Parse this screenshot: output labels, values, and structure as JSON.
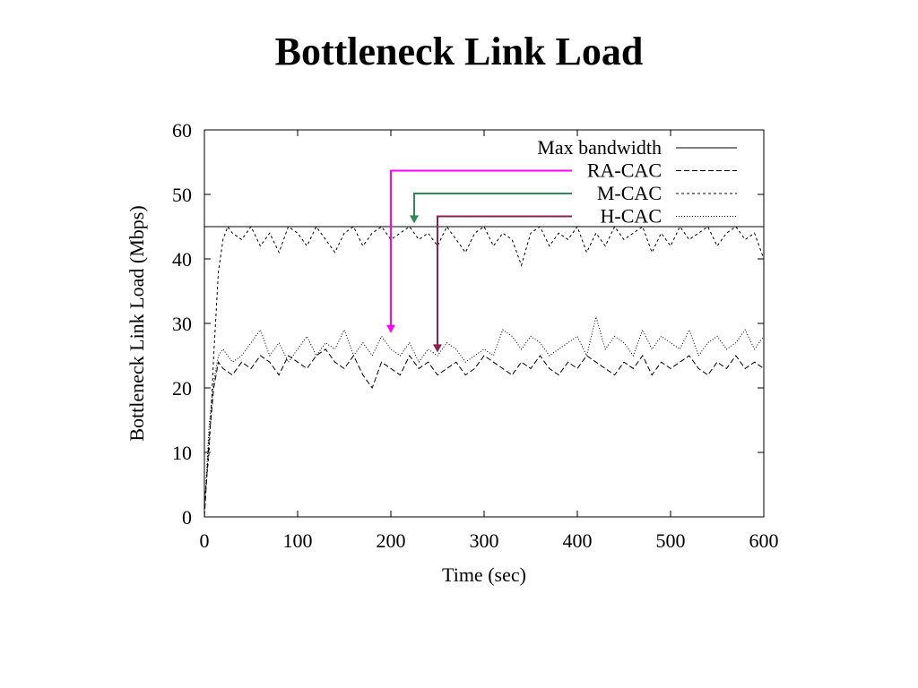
{
  "slide": {
    "title": "Bottleneck Link Load"
  },
  "chart_data": {
    "type": "line",
    "title": "",
    "xlabel": "Time (sec)",
    "ylabel": "Bottleneck Link Load (Mbps)",
    "xlim": [
      0,
      600
    ],
    "ylim": [
      0,
      60
    ],
    "x_ticks": [
      0,
      100,
      200,
      300,
      400,
      500,
      600
    ],
    "y_ticks": [
      0,
      10,
      20,
      30,
      40,
      50,
      60
    ],
    "grid": false,
    "legend_position": "top-right",
    "series": [
      {
        "name": "Max bandwidth",
        "dash": "",
        "x": [
          0,
          600
        ],
        "values": [
          45,
          45
        ]
      },
      {
        "name": "RA-CAC",
        "dash": "6,3",
        "x": [
          0,
          5,
          10,
          15,
          20,
          30,
          40,
          50,
          60,
          70,
          80,
          90,
          100,
          110,
          120,
          130,
          140,
          150,
          160,
          170,
          180,
          190,
          200,
          210,
          220,
          230,
          240,
          250,
          260,
          270,
          280,
          290,
          300,
          310,
          320,
          330,
          340,
          350,
          360,
          370,
          380,
          390,
          400,
          410,
          420,
          430,
          440,
          450,
          460,
          470,
          480,
          490,
          500,
          510,
          520,
          530,
          540,
          550,
          560,
          570,
          580,
          590,
          600
        ],
        "values": [
          0,
          12,
          20,
          24,
          23,
          22,
          24,
          23,
          25,
          24,
          22,
          25,
          24,
          23,
          25,
          26,
          24,
          23,
          25,
          22,
          20,
          24,
          23,
          22,
          25,
          23,
          24,
          22,
          23,
          24,
          22,
          23,
          25,
          24,
          23,
          22,
          24,
          23,
          25,
          23,
          22,
          24,
          23,
          25,
          24,
          23,
          22,
          24,
          23,
          25,
          22,
          24,
          23,
          24,
          25,
          23,
          22,
          24,
          23,
          25,
          23,
          24,
          23
        ]
      },
      {
        "name": "M-CAC",
        "dash": "3,3",
        "x": [
          0,
          5,
          10,
          15,
          20,
          25,
          30,
          40,
          50,
          60,
          70,
          80,
          90,
          100,
          110,
          120,
          130,
          140,
          150,
          160,
          170,
          180,
          190,
          200,
          210,
          220,
          230,
          240,
          250,
          260,
          270,
          280,
          290,
          300,
          310,
          320,
          330,
          340,
          350,
          360,
          370,
          380,
          390,
          400,
          410,
          420,
          430,
          440,
          450,
          460,
          470,
          480,
          490,
          500,
          510,
          520,
          530,
          540,
          550,
          560,
          570,
          580,
          590,
          600
        ],
        "values": [
          2,
          10,
          25,
          38,
          43,
          45,
          44,
          43,
          45,
          42,
          44,
          41,
          45,
          44,
          42,
          45,
          43,
          41,
          44,
          45,
          42,
          44,
          45,
          43,
          44,
          45,
          43,
          44,
          42,
          45,
          43,
          41,
          44,
          45,
          42,
          44,
          43,
          39,
          44,
          45,
          42,
          44,
          43,
          45,
          41,
          44,
          42,
          45,
          43,
          44,
          45,
          41,
          44,
          42,
          45,
          43,
          44,
          45,
          42,
          44,
          45,
          43,
          44,
          40
        ]
      },
      {
        "name": "H-CAC",
        "dash": "1,2",
        "x": [
          0,
          5,
          10,
          15,
          20,
          30,
          40,
          50,
          60,
          70,
          80,
          90,
          100,
          110,
          120,
          130,
          140,
          150,
          160,
          170,
          180,
          190,
          200,
          210,
          220,
          230,
          240,
          250,
          260,
          270,
          280,
          290,
          300,
          310,
          320,
          330,
          340,
          350,
          360,
          370,
          380,
          390,
          400,
          410,
          420,
          430,
          440,
          450,
          460,
          470,
          480,
          490,
          500,
          510,
          520,
          530,
          540,
          550,
          560,
          570,
          580,
          590,
          600
        ],
        "values": [
          1,
          14,
          21,
          25,
          26,
          24,
          25,
          27,
          29,
          25,
          27,
          24,
          26,
          28,
          25,
          27,
          26,
          29,
          25,
          27,
          25,
          28,
          26,
          25,
          27,
          24,
          26,
          25,
          27,
          26,
          24,
          25,
          26,
          25,
          29,
          28,
          26,
          28,
          27,
          25,
          26,
          27,
          28,
          25,
          31,
          26,
          28,
          27,
          25,
          29,
          26,
          28,
          27,
          26,
          29,
          25,
          27,
          28,
          26,
          27,
          29,
          26,
          28
        ]
      }
    ],
    "annotations": [
      {
        "target": "RA-CAC",
        "color": "#ff00ff",
        "from_legend": true,
        "x": 200,
        "y": 28.5
      },
      {
        "target": "M-CAC",
        "color": "#2e8b57",
        "from_legend": true,
        "x": 225,
        "y": 45.5
      },
      {
        "target": "H-CAC",
        "color": "#8b2252",
        "from_legend": true,
        "x": 250,
        "y": 25.5
      }
    ]
  }
}
